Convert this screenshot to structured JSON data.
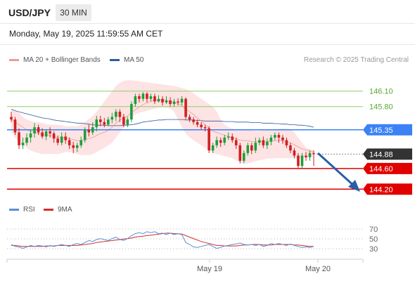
{
  "header": {
    "symbol": "USD/JPY",
    "timeframe": "30 MIN",
    "datetime": "Monday, May 19, 2025 11:59:55 AM CET"
  },
  "legend": {
    "ma20_label": "MA 20 + Bollinger Bands",
    "ma50_label": "MA 50",
    "credit": "Research © 2025 Trading Central"
  },
  "rsi_legend": {
    "rsi_label": "RSI",
    "ma_label": "9MA"
  },
  "colors": {
    "bullish": "#1e9e3a",
    "bearish": "#d21f1f",
    "ma20": "#f19a9a",
    "ma50": "#2e5a9e",
    "bands": "#fde3e3",
    "rsi": "#5b8fd6",
    "rsi_ma": "#d32f2f",
    "support": "#e00000",
    "pivot": "#3b82f6",
    "resistance": "#8ccf6a",
    "arrow": "#2a5fa8"
  },
  "chart_data": [
    {
      "type": "candlestick",
      "y_range": [
        144.0,
        146.3
      ],
      "x_ticks": [
        "May 19",
        "May 20"
      ],
      "levels": [
        {
          "value": 146.1,
          "label": "146.10",
          "kind": "resistance"
        },
        {
          "value": 145.8,
          "label": "145.80",
          "kind": "resistance"
        },
        {
          "value": 145.35,
          "label": "145.35",
          "kind": "pivot"
        },
        {
          "value": 144.88,
          "label": "144.88",
          "kind": "last"
        },
        {
          "value": 144.6,
          "label": "144.60",
          "kind": "support"
        },
        {
          "value": 144.2,
          "label": "144.20",
          "kind": "support"
        }
      ],
      "candles": [
        [
          145.6,
          145.55,
          145.7,
          145.5
        ],
        [
          145.55,
          145.3,
          145.6,
          145.25
        ],
        [
          145.3,
          145.05,
          145.38,
          144.98
        ],
        [
          145.05,
          145.1,
          145.2,
          144.98
        ],
        [
          145.1,
          145.2,
          145.28,
          145.05
        ],
        [
          145.2,
          145.28,
          145.35,
          145.1
        ],
        [
          145.28,
          145.4,
          145.48,
          145.2
        ],
        [
          145.4,
          145.3,
          145.45,
          145.25
        ],
        [
          145.3,
          145.22,
          145.38,
          145.18
        ],
        [
          145.22,
          145.32,
          145.36,
          145.15
        ],
        [
          145.32,
          145.28,
          145.4,
          145.2
        ],
        [
          145.28,
          145.18,
          145.32,
          145.1
        ],
        [
          145.18,
          145.1,
          145.24,
          145.05
        ],
        [
          145.1,
          145.22,
          145.3,
          145.05
        ],
        [
          145.22,
          145.15,
          145.3,
          145.08
        ],
        [
          145.15,
          145.05,
          145.2,
          144.98
        ],
        [
          145.05,
          145.0,
          145.12,
          144.9
        ],
        [
          145.0,
          145.05,
          145.1,
          144.92
        ],
        [
          145.05,
          145.15,
          145.22,
          145.0
        ],
        [
          145.15,
          145.35,
          145.4,
          145.1
        ],
        [
          145.35,
          145.3,
          145.45,
          145.22
        ],
        [
          145.3,
          145.4,
          145.5,
          145.25
        ],
        [
          145.4,
          145.55,
          145.62,
          145.32
        ],
        [
          145.55,
          145.5,
          145.62,
          145.42
        ],
        [
          145.5,
          145.45,
          145.58,
          145.4
        ],
        [
          145.45,
          145.55,
          145.6,
          145.42
        ],
        [
          145.55,
          145.6,
          145.68,
          145.48
        ],
        [
          145.6,
          145.7,
          145.75,
          145.52
        ],
        [
          145.7,
          145.6,
          145.75,
          145.5
        ],
        [
          145.6,
          145.45,
          145.66,
          145.4
        ],
        [
          145.45,
          145.55,
          145.6,
          145.4
        ],
        [
          145.55,
          145.85,
          145.9,
          145.5
        ],
        [
          145.85,
          146.0,
          146.05,
          145.8
        ],
        [
          146.0,
          145.95,
          146.05,
          145.88
        ],
        [
          145.95,
          146.05,
          146.08,
          145.9
        ],
        [
          146.05,
          145.95,
          146.08,
          145.88
        ],
        [
          145.95,
          146.0,
          146.05,
          145.9
        ],
        [
          146.0,
          145.9,
          146.05,
          145.85
        ],
        [
          145.9,
          145.95,
          146.02,
          145.88
        ],
        [
          145.95,
          145.88,
          146.0,
          145.82
        ],
        [
          145.88,
          145.92,
          146.0,
          145.85
        ],
        [
          145.92,
          145.85,
          145.98,
          145.8
        ],
        [
          145.85,
          145.9,
          145.95,
          145.8
        ],
        [
          145.9,
          145.88,
          145.96,
          145.82
        ],
        [
          145.88,
          145.95,
          146.0,
          145.82
        ],
        [
          145.95,
          145.6,
          145.98,
          145.55
        ],
        [
          145.6,
          145.55,
          145.65,
          145.5
        ],
        [
          145.55,
          145.5,
          145.6,
          145.45
        ],
        [
          145.5,
          145.45,
          145.55,
          145.4
        ],
        [
          145.45,
          145.4,
          145.5,
          145.35
        ],
        [
          145.4,
          145.38,
          145.45,
          145.32
        ],
        [
          145.38,
          144.95,
          145.42,
          144.9
        ],
        [
          144.95,
          145.05,
          145.1,
          144.9
        ],
        [
          145.05,
          145.15,
          145.22,
          145.0
        ],
        [
          145.15,
          145.1,
          145.2,
          145.02
        ],
        [
          145.1,
          145.2,
          145.25,
          145.05
        ],
        [
          145.2,
          145.22,
          145.3,
          145.15
        ],
        [
          145.22,
          145.15,
          145.28,
          145.1
        ],
        [
          145.15,
          145.05,
          145.2,
          144.98
        ],
        [
          145.05,
          144.75,
          145.1,
          144.7
        ],
        [
          144.75,
          144.9,
          144.95,
          144.7
        ],
        [
          144.9,
          145.05,
          145.1,
          144.85
        ],
        [
          145.05,
          144.95,
          145.1,
          144.88
        ],
        [
          144.95,
          145.1,
          145.2,
          144.9
        ],
        [
          145.1,
          145.15,
          145.2,
          145.05
        ],
        [
          145.15,
          145.05,
          145.22,
          145.0
        ],
        [
          145.05,
          145.12,
          145.18,
          144.98
        ],
        [
          145.12,
          145.2,
          145.25,
          145.05
        ],
        [
          145.2,
          145.25,
          145.3,
          145.15
        ],
        [
          145.25,
          145.2,
          145.3,
          145.1
        ],
        [
          145.2,
          145.15,
          145.25,
          145.08
        ],
        [
          145.15,
          145.05,
          145.2,
          145.0
        ],
        [
          145.05,
          144.95,
          145.1,
          144.9
        ],
        [
          144.95,
          144.85,
          145.0,
          144.8
        ],
        [
          144.85,
          144.65,
          144.9,
          144.6
        ],
        [
          144.65,
          144.85,
          144.9,
          144.6
        ],
        [
          144.85,
          144.82,
          144.92,
          144.75
        ],
        [
          144.82,
          144.9,
          144.95,
          144.75
        ],
        [
          144.9,
          144.88,
          144.95,
          144.65
        ]
      ],
      "ma20": [
        145.55,
        145.5,
        145.45,
        145.4,
        145.35,
        145.32,
        145.3,
        145.28,
        145.26,
        145.25,
        145.24,
        145.22,
        145.2,
        145.2,
        145.19,
        145.18,
        145.16,
        145.14,
        145.14,
        145.16,
        145.18,
        145.2,
        145.24,
        145.28,
        145.3,
        145.34,
        145.4,
        145.48,
        145.54,
        145.58,
        145.62,
        145.68,
        145.74,
        145.79,
        145.84,
        145.87,
        145.9,
        145.92,
        145.93,
        145.93,
        145.92,
        145.9,
        145.88,
        145.86,
        145.82,
        145.75,
        145.7,
        145.65,
        145.58,
        145.52,
        145.45,
        145.38,
        145.32,
        145.3,
        145.27,
        145.25,
        145.22,
        145.2,
        145.18,
        145.15,
        145.14,
        145.14,
        145.12,
        145.12,
        145.12,
        145.12,
        145.12,
        145.13,
        145.14,
        145.14,
        145.14,
        145.12,
        145.1,
        145.06,
        145.02,
        144.98,
        144.96,
        144.94,
        144.92
      ],
      "ma50": [
        145.75,
        145.72,
        145.7,
        145.68,
        145.66,
        145.64,
        145.62,
        145.6,
        145.58,
        145.57,
        145.56,
        145.54,
        145.53,
        145.52,
        145.51,
        145.5,
        145.49,
        145.48,
        145.48,
        145.47,
        145.46,
        145.45,
        145.44,
        145.44,
        145.44,
        145.43,
        145.43,
        145.43,
        145.43,
        145.44,
        145.44,
        145.45,
        145.46,
        145.48,
        145.5,
        145.51,
        145.52,
        145.53,
        145.54,
        145.54,
        145.55,
        145.55,
        145.55,
        145.55,
        145.55,
        145.54,
        145.54,
        145.54,
        145.53,
        145.53,
        145.52,
        145.52,
        145.52,
        145.52,
        145.52,
        145.51,
        145.51,
        145.51,
        145.5,
        145.5,
        145.5,
        145.5,
        145.49,
        145.49,
        145.49,
        145.48,
        145.48,
        145.48,
        145.47,
        145.47,
        145.46,
        145.46,
        145.45,
        145.45,
        145.44,
        145.44,
        145.43,
        145.42,
        145.4
      ],
      "bb_upper": [
        145.75,
        145.72,
        145.68,
        145.6,
        145.55,
        145.52,
        145.5,
        145.5,
        145.48,
        145.46,
        145.45,
        145.45,
        145.45,
        145.44,
        145.42,
        145.42,
        145.42,
        145.42,
        145.45,
        145.5,
        145.56,
        145.62,
        145.7,
        145.8,
        145.9,
        146.0,
        146.1,
        146.2,
        146.26,
        146.3,
        146.31,
        146.31,
        146.3,
        146.29,
        146.28,
        146.27,
        146.26,
        146.25,
        146.24,
        146.23,
        146.22,
        146.21,
        146.2,
        146.18,
        146.16,
        146.14,
        146.1,
        146.06,
        146.0,
        145.95,
        145.9,
        145.85,
        145.8,
        145.7,
        145.55,
        145.45,
        145.4,
        145.38,
        145.36,
        145.36,
        145.35,
        145.34,
        145.34,
        145.33,
        145.33,
        145.34,
        145.34,
        145.35,
        145.36,
        145.37,
        145.38,
        145.38,
        145.36,
        145.3,
        145.2,
        145.1,
        145.0,
        144.98,
        144.96
      ],
      "bb_lower": [
        145.3,
        145.2,
        145.1,
        145.05,
        145.0,
        144.95,
        144.92,
        144.9,
        144.88,
        144.88,
        144.88,
        144.88,
        144.88,
        144.9,
        144.92,
        144.92,
        144.9,
        144.88,
        144.86,
        144.86,
        144.86,
        144.88,
        144.92,
        144.96,
        145.0,
        145.05,
        145.1,
        145.2,
        145.3,
        145.4,
        145.5,
        145.6,
        145.65,
        145.68,
        145.7,
        145.72,
        145.74,
        145.76,
        145.78,
        145.78,
        145.78,
        145.76,
        145.7,
        145.55,
        145.4,
        145.28,
        145.2,
        145.15,
        145.1,
        145.05,
        145.0,
        144.95,
        144.9,
        144.88,
        144.86,
        144.84,
        144.82,
        144.8,
        144.76,
        144.72,
        144.7,
        144.7,
        144.72,
        144.74,
        144.76,
        144.78,
        144.79,
        144.8,
        144.8,
        144.8,
        144.8,
        144.8,
        144.8,
        144.8,
        144.8,
        144.8,
        144.8,
        144.82,
        144.84
      ]
    },
    {
      "type": "line",
      "y_range": [
        20,
        80
      ],
      "y_ticks": [
        70,
        50,
        30
      ],
      "series": [
        {
          "name": "RSI",
          "values": [
            40,
            36,
            35,
            32,
            35,
            38,
            36,
            38,
            37,
            35,
            38,
            36,
            38,
            40,
            38,
            36,
            40,
            42,
            40,
            44,
            48,
            46,
            50,
            52,
            50,
            48,
            52,
            55,
            50,
            48,
            52,
            58,
            62,
            64,
            62,
            66,
            64,
            66,
            62,
            63,
            60,
            63,
            60,
            62,
            60,
            44,
            40,
            35,
            34,
            36,
            38,
            40,
            36,
            32,
            34,
            37,
            38,
            40,
            41,
            43,
            40,
            39,
            40,
            38,
            40,
            36,
            38,
            42,
            40,
            42,
            40,
            38,
            41,
            38,
            36,
            34,
            35,
            34,
            36
          ]
        },
        {
          "name": "9MA",
          "values": [
            38,
            38,
            37,
            36,
            36,
            36,
            36,
            36,
            36,
            37,
            37,
            37,
            38,
            38,
            38,
            38,
            38,
            38,
            39,
            40,
            41,
            42,
            44,
            45,
            46,
            47,
            48,
            49,
            50,
            51,
            52,
            53,
            55,
            56,
            57,
            58,
            59,
            60,
            61,
            62,
            63,
            63,
            62,
            62,
            61,
            58,
            55,
            52,
            49,
            46,
            44,
            42,
            40,
            38,
            38,
            37,
            37,
            37,
            37,
            38,
            39,
            39,
            40,
            40,
            40,
            39,
            39,
            39,
            40,
            40,
            40,
            40,
            40,
            39,
            39,
            38,
            37,
            36,
            36
          ]
        }
      ]
    }
  ]
}
